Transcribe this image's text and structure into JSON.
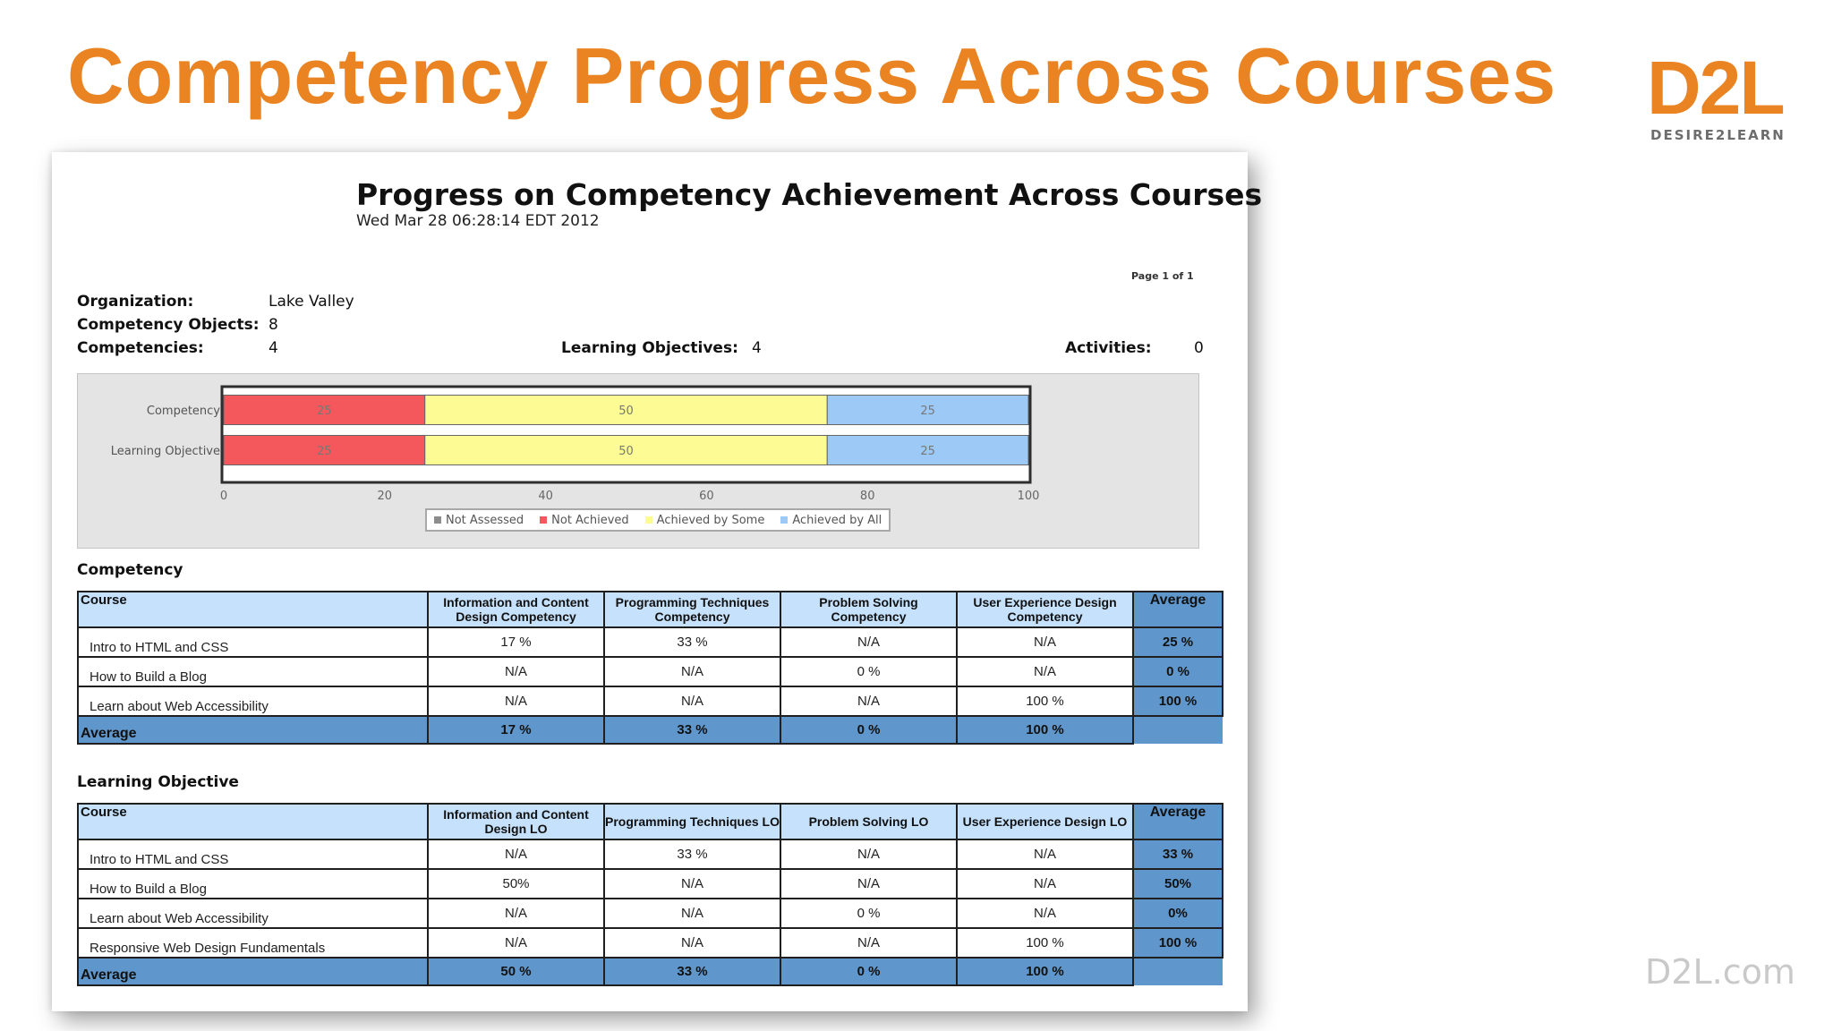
{
  "slide": {
    "title": "Competency Progress Across Courses",
    "logo_mark": "D2L",
    "logo_sub": "DESIRE2LEARN",
    "site_url": "D2L.com"
  },
  "report": {
    "title": "Progress on Competency Achievement Across Courses",
    "date": "Wed Mar 28 06:28:14 EDT 2012",
    "page_info": "Page 1 of 1",
    "info": {
      "organization_label": "Organization:",
      "organization_value": "Lake Valley",
      "competency_objects_label": "Competency Objects:",
      "competency_objects_value": "8",
      "competencies_label": "Competencies:",
      "competencies_value": "4",
      "learning_objectives_label": "Learning Objectives:",
      "learning_objectives_value": "4",
      "activities_label": "Activities:",
      "activities_value": "0"
    }
  },
  "chart_data": {
    "type": "bar",
    "orientation": "horizontal",
    "stacked": true,
    "categories": [
      "Competency",
      "Learning Objective"
    ],
    "series": [
      {
        "name": "Not Assessed",
        "color": "#8c8c8c",
        "values": [
          0,
          0
        ]
      },
      {
        "name": "Not Achieved",
        "color": "#f4585c",
        "values": [
          25,
          25
        ]
      },
      {
        "name": "Achieved by Some",
        "color": "#fdfc94",
        "values": [
          50,
          50
        ]
      },
      {
        "name": "Achieved by All",
        "color": "#9dc9f7",
        "values": [
          25,
          25
        ]
      }
    ],
    "data_labels": [
      [
        "",
        "25",
        "50",
        "25"
      ],
      [
        "",
        "25",
        "50",
        "25"
      ]
    ],
    "xlim": [
      0,
      100
    ],
    "xticks": [
      "0",
      "20",
      "40",
      "60",
      "80",
      "100"
    ],
    "legend_position": "bottom",
    "grid": false
  },
  "competency_section": {
    "label": "Competency",
    "headers": {
      "course": "Course",
      "cols": [
        "Information and Content Design Competency",
        "Programming Techniques Competency",
        "Problem Solving Competency",
        "User Experience Design Competency"
      ],
      "average": "Average"
    },
    "rows": [
      {
        "course": "Intro to HTML and CSS",
        "values": [
          "17 %",
          "33 %",
          "N/A",
          "N/A"
        ],
        "average": "25 %"
      },
      {
        "course": "How to Build a Blog",
        "values": [
          "N/A",
          "N/A",
          "0 %",
          "N/A"
        ],
        "average": "0 %"
      },
      {
        "course": "Learn about Web Accessibility",
        "values": [
          "N/A",
          "N/A",
          "N/A",
          "100 %"
        ],
        "average": "100 %"
      }
    ],
    "average_row": {
      "label": "Average",
      "values": [
        "17 %",
        "33 %",
        "0 %",
        "100 %"
      ]
    }
  },
  "lo_section": {
    "label": "Learning Objective",
    "headers": {
      "course": "Course",
      "cols": [
        "Information and Content Design LO",
        "Programming Techniques LO",
        "Problem Solving LO",
        "User Experience Design LO"
      ],
      "average": "Average"
    },
    "rows": [
      {
        "course": "Intro to HTML and CSS",
        "values": [
          "N/A",
          "33 %",
          "N/A",
          "N/A"
        ],
        "average": "33 %"
      },
      {
        "course": "How to Build a Blog",
        "values": [
          "50%",
          "N/A",
          "N/A",
          "N/A"
        ],
        "average": "50%"
      },
      {
        "course": "Learn about Web Accessibility",
        "values": [
          "N/A",
          "N/A",
          "0 %",
          "N/A"
        ],
        "average": "0%"
      },
      {
        "course": "Responsive Web Design Fundamentals",
        "values": [
          "N/A",
          "N/A",
          "N/A",
          "100 %"
        ],
        "average": "100 %"
      }
    ],
    "average_row": {
      "label": "Average",
      "values": [
        "50 %",
        "33 %",
        "0 %",
        "100 %"
      ]
    }
  }
}
